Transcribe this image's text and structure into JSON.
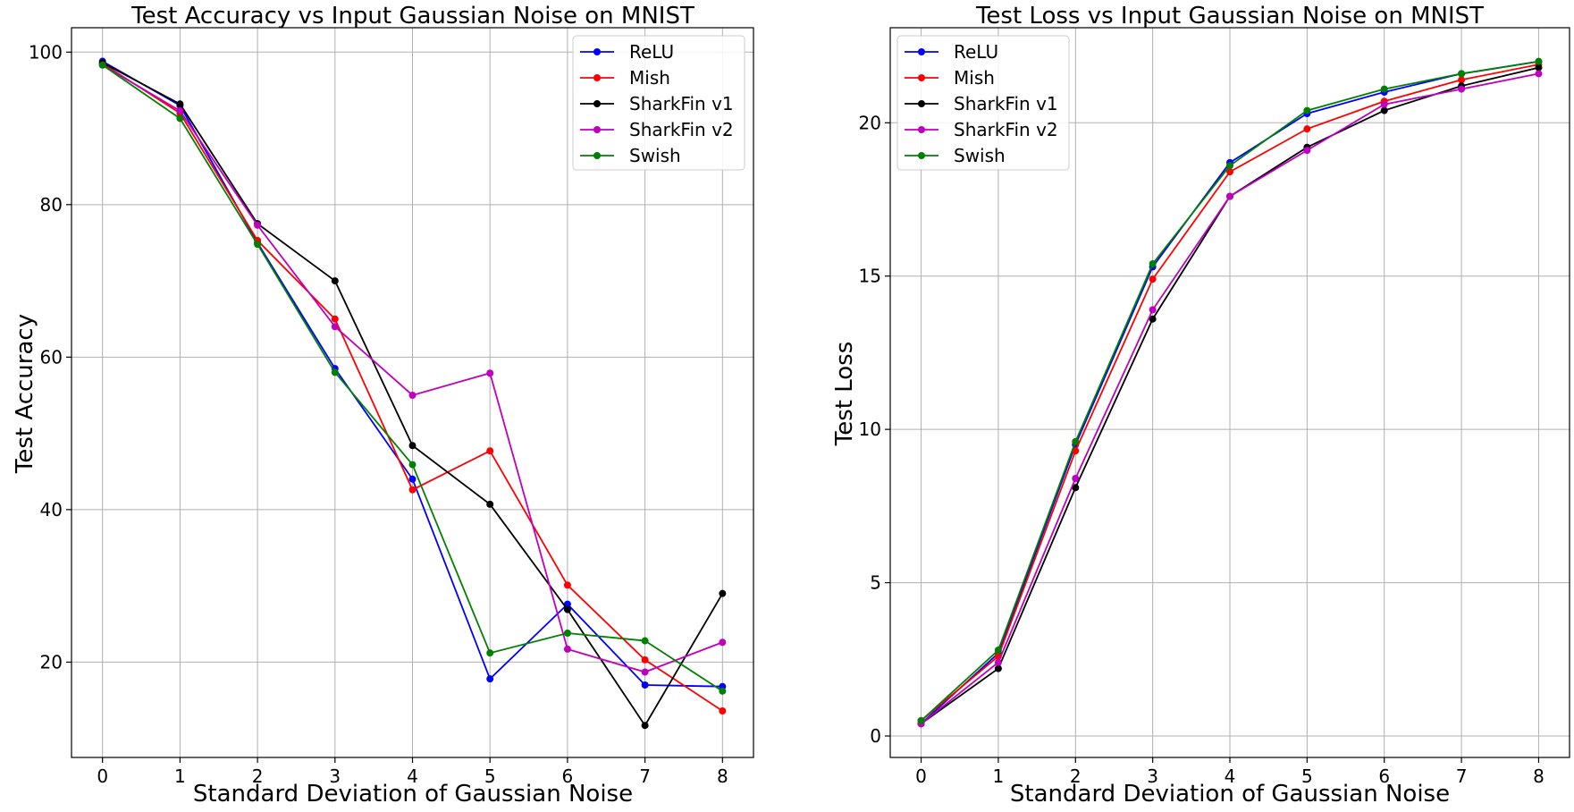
{
  "chart_data": [
    {
      "type": "line",
      "title": "Test Accuracy vs Input Gaussian Noise on MNIST",
      "xlabel": "Standard Deviation of Gaussian Noise",
      "ylabel": "Test Accuracy",
      "x": [
        0,
        1,
        2,
        3,
        4,
        5,
        6,
        7,
        8
      ],
      "xticks": [
        "0",
        "1",
        "2",
        "3",
        "4",
        "5",
        "6",
        "7",
        "8"
      ],
      "yticks": [
        "20",
        "40",
        "60",
        "80",
        "100"
      ],
      "xlim": [
        -0.4,
        8.4
      ],
      "ylim": [
        7.5,
        103.2
      ],
      "grid": true,
      "legend_position": "top-right",
      "series": [
        {
          "name": "ReLU",
          "color": "#0000ff",
          "values": [
            98.8,
            93.0,
            75.0,
            58.5,
            44.0,
            17.8,
            27.6,
            17.0,
            16.8
          ]
        },
        {
          "name": "Mish",
          "color": "#ff0000",
          "values": [
            98.5,
            92.0,
            75.3,
            65.0,
            42.6,
            47.7,
            30.1,
            20.3,
            13.6
          ]
        },
        {
          "name": "SharkFin v1",
          "color": "#000000",
          "values": [
            98.6,
            93.2,
            77.5,
            70.0,
            48.4,
            40.7,
            26.9,
            11.7,
            29.0
          ]
        },
        {
          "name": "SharkFin v2",
          "color": "#bf00bf",
          "values": [
            98.3,
            92.3,
            77.3,
            64.0,
            55.0,
            57.9,
            21.7,
            18.7,
            22.6
          ]
        },
        {
          "name": "Swish",
          "color": "#008000",
          "values": [
            98.3,
            91.3,
            74.8,
            58.0,
            45.9,
            21.2,
            23.8,
            22.8,
            16.2
          ]
        }
      ]
    },
    {
      "type": "line",
      "title": "Test Loss vs Input Gaussian Noise on MNIST",
      "xlabel": "Standard Deviation of Gaussian Noise",
      "ylabel": "Test Loss",
      "x": [
        0,
        1,
        2,
        3,
        4,
        5,
        6,
        7,
        8
      ],
      "xticks": [
        "0",
        "1",
        "2",
        "3",
        "4",
        "5",
        "6",
        "7",
        "8"
      ],
      "yticks": [
        "0",
        "5",
        "10",
        "15",
        "20"
      ],
      "xlim": [
        -0.4,
        8.4
      ],
      "ylim": [
        -0.7,
        23.1
      ],
      "grid": true,
      "legend_position": "top-left",
      "series": [
        {
          "name": "ReLU",
          "color": "#0000ff",
          "values": [
            0.4,
            2.7,
            9.5,
            15.3,
            18.7,
            20.3,
            21.0,
            21.6,
            22.0
          ]
        },
        {
          "name": "Mish",
          "color": "#ff0000",
          "values": [
            0.5,
            2.6,
            9.3,
            14.9,
            18.4,
            19.8,
            20.7,
            21.4,
            21.9
          ]
        },
        {
          "name": "SharkFin v1",
          "color": "#000000",
          "values": [
            0.4,
            2.2,
            8.1,
            13.6,
            17.6,
            19.2,
            20.4,
            21.2,
            21.8
          ]
        },
        {
          "name": "SharkFin v2",
          "color": "#bf00bf",
          "values": [
            0.4,
            2.4,
            8.4,
            13.9,
            17.6,
            19.1,
            20.6,
            21.1,
            21.6
          ]
        },
        {
          "name": "Swish",
          "color": "#008000",
          "values": [
            0.5,
            2.8,
            9.6,
            15.4,
            18.6,
            20.4,
            21.1,
            21.6,
            22.0
          ]
        }
      ]
    }
  ]
}
